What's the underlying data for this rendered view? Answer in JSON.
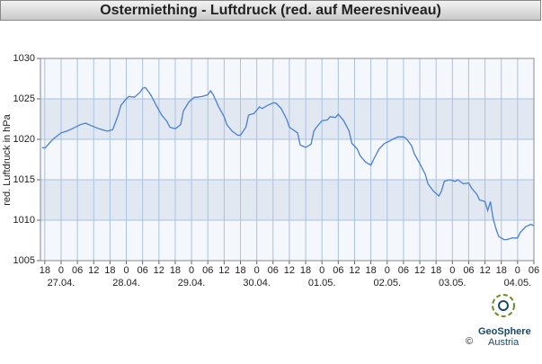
{
  "chart_data": {
    "type": "line",
    "title": "Ostermiething - Luftdruck (red. auf Meeresniveau)",
    "y_label": "red. Luftdruck in hPa",
    "color": "#4a7fd4",
    "x": [
      -7,
      -6,
      -3,
      0,
      2,
      4,
      7,
      9,
      11,
      14,
      17,
      19,
      21,
      22,
      24,
      25,
      27,
      29,
      30,
      31,
      33,
      35,
      37,
      39,
      40,
      42,
      44,
      45,
      47,
      49,
      50,
      52,
      54,
      55,
      56,
      58,
      60,
      61,
      63,
      65,
      66,
      68,
      69,
      71,
      73,
      74,
      76,
      78,
      79,
      81,
      83,
      84,
      87,
      88,
      90,
      92,
      93,
      94,
      96,
      98,
      99,
      101,
      102,
      104,
      106,
      107,
      109,
      110,
      112,
      114,
      115,
      117,
      119,
      121,
      122,
      124,
      126,
      127,
      129,
      130,
      132,
      134,
      135,
      137,
      139,
      140,
      141,
      143,
      145,
      146,
      148,
      150,
      151,
      153,
      154,
      156,
      157,
      158,
      159,
      160,
      161,
      163,
      164,
      166,
      168,
      169,
      171,
      173,
      174
    ],
    "values": [
      1019.0,
      1018.9,
      1020.0,
      1020.8,
      1021.0,
      1021.3,
      1021.8,
      1022.0,
      1021.7,
      1021.3,
      1021.0,
      1021.2,
      1023.0,
      1024.2,
      1025.0,
      1025.3,
      1025.2,
      1025.8,
      1026.3,
      1026.4,
      1025.5,
      1024.2,
      1023.0,
      1022.2,
      1021.5,
      1021.3,
      1021.8,
      1023.5,
      1024.6,
      1025.2,
      1025.2,
      1025.3,
      1025.5,
      1026.0,
      1025.5,
      1024.0,
      1022.8,
      1021.8,
      1021.0,
      1020.5,
      1020.5,
      1021.5,
      1023.0,
      1023.2,
      1024.0,
      1023.8,
      1024.2,
      1024.5,
      1024.5,
      1023.8,
      1022.5,
      1021.5,
      1020.8,
      1019.3,
      1019.0,
      1019.4,
      1021.0,
      1021.5,
      1022.3,
      1022.4,
      1022.8,
      1022.7,
      1023.1,
      1022.3,
      1021.0,
      1019.5,
      1018.8,
      1018.0,
      1017.2,
      1016.8,
      1017.5,
      1018.8,
      1019.5,
      1019.8,
      1020.0,
      1020.3,
      1020.3,
      1020.1,
      1019.2,
      1018.2,
      1017.0,
      1015.7,
      1014.5,
      1013.6,
      1013.0,
      1013.6,
      1014.8,
      1015.0,
      1014.8,
      1015.0,
      1014.5,
      1014.6,
      1014.0,
      1013.2,
      1012.5,
      1012.3,
      1011.2,
      1012.3,
      1010.2,
      1009.0,
      1008.0,
      1007.6,
      1007.6,
      1007.8,
      1007.8,
      1008.5,
      1009.2,
      1009.5,
      1009.3
    ],
    "xlim": [
      -7.6,
      174
    ],
    "ylim": [
      1005,
      1030
    ],
    "yticks": [
      1005,
      1010,
      1015,
      1020,
      1025,
      1030
    ],
    "xticks": [
      {
        "value": -6,
        "label": "18"
      },
      {
        "value": 0,
        "label": "0"
      },
      {
        "value": 6,
        "label": "06"
      },
      {
        "value": 12,
        "label": "12"
      },
      {
        "value": 18,
        "label": "18"
      },
      {
        "value": 24,
        "label": "0"
      },
      {
        "value": 30,
        "label": "06"
      },
      {
        "value": 36,
        "label": "12"
      },
      {
        "value": 42,
        "label": "18"
      },
      {
        "value": 48,
        "label": "0"
      },
      {
        "value": 54,
        "label": "06"
      },
      {
        "value": 60,
        "label": "12"
      },
      {
        "value": 66,
        "label": "18"
      },
      {
        "value": 72,
        "label": "0"
      },
      {
        "value": 78,
        "label": "06"
      },
      {
        "value": 84,
        "label": "12"
      },
      {
        "value": 90,
        "label": "18"
      },
      {
        "value": 96,
        "label": "0"
      },
      {
        "value": 102,
        "label": "06"
      },
      {
        "value": 108,
        "label": "12"
      },
      {
        "value": 114,
        "label": "18"
      },
      {
        "value": 120,
        "label": "0"
      },
      {
        "value": 126,
        "label": "06"
      },
      {
        "value": 132,
        "label": "12"
      },
      {
        "value": 138,
        "label": "18"
      },
      {
        "value": 144,
        "label": "0"
      },
      {
        "value": 150,
        "label": "06"
      },
      {
        "value": 156,
        "label": "12"
      },
      {
        "value": 162,
        "label": "18"
      },
      {
        "value": 168,
        "label": "0"
      },
      {
        "value": 174,
        "label": "06"
      }
    ],
    "date_labels": [
      {
        "value": 0,
        "label": "27.04."
      },
      {
        "value": 24,
        "label": "28.04."
      },
      {
        "value": 48,
        "label": "29.04."
      },
      {
        "value": 72,
        "label": "30.04."
      },
      {
        "value": 96,
        "label": "01.05."
      },
      {
        "value": 120,
        "label": "02.05."
      },
      {
        "value": 144,
        "label": "03.05."
      },
      {
        "value": 168,
        "label": "04.05."
      }
    ],
    "grid": true
  },
  "logo": {
    "name": "GeoSphere",
    "sub": "Austria",
    "copyright": "©"
  }
}
